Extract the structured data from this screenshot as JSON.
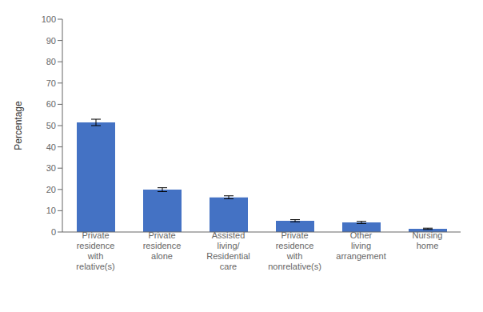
{
  "chart_data": {
    "type": "bar",
    "categories": [
      "Private\nresidence\nwith\nrelative(s)",
      "Private\nresidence\nalone",
      "Assisted\nliving/\nResidential\ncare",
      "Private\nresidence\nwith\nnonrelative(s)",
      "Other\nliving\narrangement",
      "Nursing\nhome"
    ],
    "values": [
      51.5,
      19.9,
      16.3,
      5.3,
      4.5,
      1.5
    ],
    "errors": [
      1.5,
      0.9,
      0.7,
      0.5,
      0.5,
      0.3
    ],
    "color": "#4472C4",
    "ylabel": "Percentage",
    "ylim": [
      0,
      100
    ],
    "yticks": [
      0,
      10,
      20,
      30,
      40,
      50,
      60,
      70,
      80,
      90,
      100
    ],
    "grid": false
  }
}
